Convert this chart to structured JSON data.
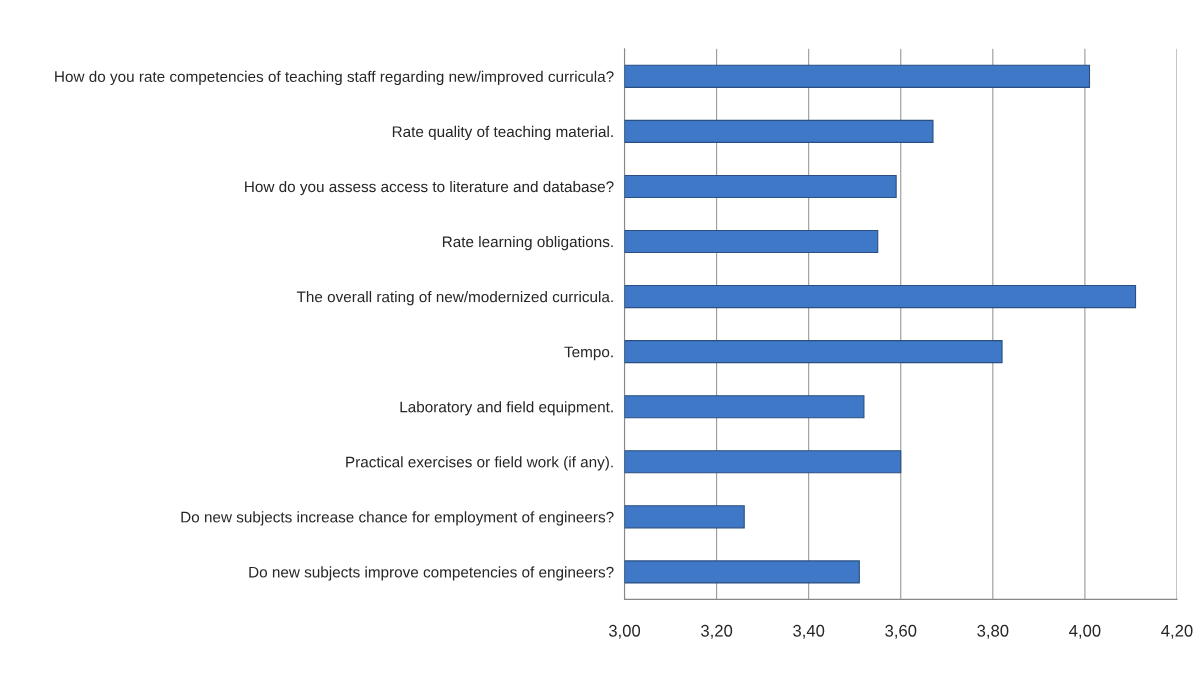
{
  "chart_data": {
    "type": "bar",
    "orientation": "horizontal",
    "categories": [
      "How do you rate competencies of teaching staff regarding new/improved curricula?",
      "Rate quality of teaching material.",
      "How do you assess access to literature and database?",
      "Rate learning obligations.",
      "The overall rating of new/modernized curricula.",
      "Tempo.",
      "Laboratory and field equipment.",
      "Practical exercises or field work (if any).",
      "Do new subjects increase chance for employment of engineers?",
      "Do new subjects improve competencies of engineers?"
    ],
    "values": [
      4.01,
      3.67,
      3.59,
      3.55,
      4.11,
      3.82,
      3.52,
      3.6,
      3.26,
      3.51
    ],
    "color": "#3e78c6",
    "xlim": [
      3.0,
      4.2
    ],
    "xticks": [
      {
        "value": 3.0,
        "label": "3,00"
      },
      {
        "value": 3.2,
        "label": "3,20"
      },
      {
        "value": 3.4,
        "label": "3,40"
      },
      {
        "value": 3.6,
        "label": "3,60"
      },
      {
        "value": 3.8,
        "label": "3,80"
      },
      {
        "value": 4.0,
        "label": "4,00"
      },
      {
        "value": 4.2,
        "label": "4,20"
      }
    ],
    "grid": "x"
  }
}
